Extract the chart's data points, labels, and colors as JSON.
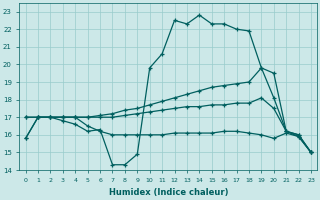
{
  "xlabel": "Humidex (Indice chaleur)",
  "hours": [
    0,
    1,
    2,
    3,
    4,
    5,
    6,
    7,
    8,
    9,
    10,
    11,
    12,
    13,
    14,
    15,
    16,
    17,
    18,
    19,
    20,
    21,
    22,
    23
  ],
  "line1": [
    15.8,
    17.0,
    17.0,
    16.8,
    16.6,
    16.2,
    16.3,
    14.3,
    14.3,
    14.9,
    19.8,
    20.6,
    22.5,
    22.3,
    22.8,
    22.3,
    22.3,
    22.0,
    21.9,
    19.8,
    18.1,
    16.2,
    15.9,
    15.0
  ],
  "line2": [
    17.0,
    17.0,
    17.0,
    17.0,
    17.0,
    17.0,
    17.1,
    17.2,
    17.4,
    17.5,
    17.7,
    17.9,
    18.1,
    18.3,
    18.5,
    18.7,
    18.8,
    18.9,
    19.0,
    19.8,
    19.5,
    16.2,
    16.0,
    15.0
  ],
  "line3": [
    17.0,
    17.0,
    17.0,
    17.0,
    17.0,
    17.0,
    17.0,
    17.0,
    17.1,
    17.2,
    17.3,
    17.4,
    17.5,
    17.6,
    17.6,
    17.7,
    17.7,
    17.8,
    17.8,
    18.1,
    17.5,
    16.2,
    16.0,
    15.0
  ],
  "line4": [
    15.8,
    17.0,
    17.0,
    17.0,
    17.0,
    16.5,
    16.2,
    16.0,
    16.0,
    16.0,
    16.0,
    16.0,
    16.1,
    16.1,
    16.1,
    16.1,
    16.2,
    16.2,
    16.1,
    16.0,
    15.8,
    16.1,
    15.9,
    15.0
  ],
  "bg_color": "#cce8e8",
  "grid_color": "#99cccc",
  "line_color": "#005f5f",
  "ylim": [
    14,
    23.5
  ],
  "xlim": [
    -0.5,
    23.5
  ],
  "yticks": [
    14,
    15,
    16,
    17,
    18,
    19,
    20,
    21,
    22,
    23
  ]
}
